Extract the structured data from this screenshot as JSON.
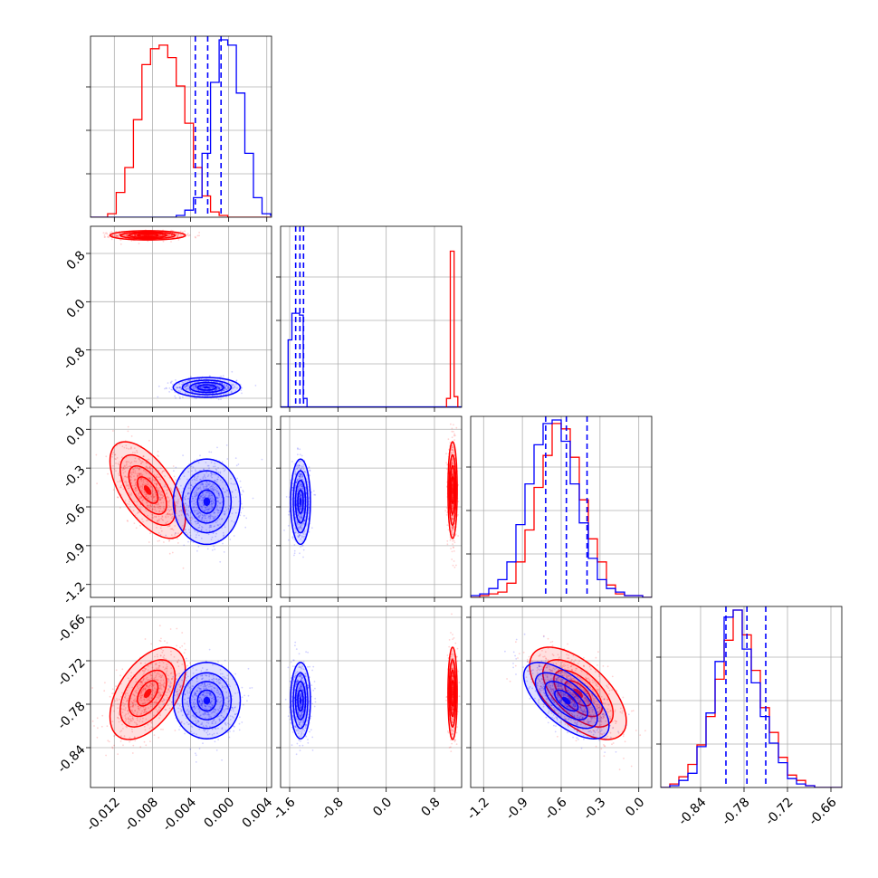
{
  "chart_data": {
    "type": "corner",
    "parameters": 4,
    "colors": {
      "series_a": "#ff0000",
      "series_b": "#0000ff",
      "grid": "#b0b0b0"
    },
    "grid": true,
    "axes": [
      {
        "range": [
          -0.0145,
          0.0045
        ],
        "ticks": [
          "-0.012",
          "-0.008",
          "-0.004",
          "0.000",
          "0.004"
        ],
        "tick_values": [
          -0.012,
          -0.008,
          -0.004,
          0.0,
          0.004
        ]
      },
      {
        "range": [
          -1.75,
          1.25
        ],
        "ticks": [
          "-1.6",
          "-0.8",
          "0.0",
          "0.8"
        ],
        "tick_values": [
          -1.6,
          -0.8,
          0.0,
          0.8
        ]
      },
      {
        "range": [
          -1.3,
          0.1
        ],
        "ticks": [
          "-1.2",
          "-0.9",
          "-0.6",
          "-0.3",
          "0.0"
        ],
        "tick_values": [
          -1.2,
          -0.9,
          -0.6,
          -0.3,
          0.0
        ]
      },
      {
        "range": [
          -0.895,
          -0.645
        ],
        "ticks": [
          "-0.84",
          "-0.78",
          "-0.72",
          "-0.66"
        ],
        "tick_values": [
          -0.84,
          -0.78,
          -0.72,
          -0.66
        ]
      }
    ],
    "series": [
      {
        "color": "#ff0000",
        "mean": [
          -0.0085,
          1.1,
          -0.47,
          -0.765
        ],
        "std": [
          0.0018,
          0.035,
          0.17,
          0.029
        ],
        "corr": {
          "0-2": -0.6,
          "0-3": 0.5,
          "2-3": -0.6
        }
      },
      {
        "color": "#0000ff",
        "mean": [
          -0.0023,
          -1.42,
          -0.56,
          -0.775
        ],
        "std": [
          0.0016,
          0.075,
          0.15,
          0.024
        ],
        "corr": {
          "0-2": 0.0,
          "0-3": 0.0,
          "2-3": -0.65
        }
      }
    ],
    "quantile_lines": [
      [
        -0.0035,
        -0.0022,
        -0.0008
      ],
      [
        -1.5,
        -1.43,
        -1.37
      ],
      [
        -0.72,
        -0.56,
        -0.4
      ],
      [
        -0.805,
        -0.776,
        -0.75
      ]
    ],
    "histograms": [
      {
        "bin_start": -0.0145,
        "bin_width": 0.0009,
        "red": [
          0,
          0,
          0.02,
          0.14,
          0.28,
          0.55,
          0.86,
          0.95,
          0.97,
          0.9,
          0.74,
          0.53,
          0.28,
          0.12,
          0.03,
          0.01,
          0,
          0,
          0,
          0,
          0,
          0
        ],
        "blue": [
          0,
          0,
          0,
          0,
          0,
          0,
          0,
          0,
          0,
          0,
          0.01,
          0.04,
          0.11,
          0.36,
          0.76,
          1.0,
          0.97,
          0.7,
          0.36,
          0.11,
          0.02,
          0.01
        ]
      },
      {
        "bin_start": -1.75,
        "bin_width": 0.0625,
        "bar_scale": 1.0,
        "blue_bins": [
          [
            -1.625,
            0.38
          ],
          [
            -1.5625,
            0.53
          ],
          [
            -1.5,
            0.53
          ],
          [
            -1.4375,
            0.52
          ],
          [
            -1.375,
            0.05
          ]
        ],
        "red_bins": [
          [
            1.0,
            0.05
          ],
          [
            1.0625,
            0.88
          ],
          [
            1.125,
            0.06
          ]
        ]
      },
      {
        "bin_start": -1.3,
        "bin_width": 0.07,
        "red": [
          0,
          0.01,
          0.02,
          0.03,
          0.08,
          0.2,
          0.38,
          0.62,
          0.8,
          0.98,
          0.95,
          0.79,
          0.55,
          0.33,
          0.2,
          0.07,
          0.02,
          0.01,
          0.01,
          0
        ],
        "blue": [
          0.01,
          0.02,
          0.05,
          0.1,
          0.2,
          0.41,
          0.64,
          0.86,
          0.98,
          1.0,
          0.88,
          0.64,
          0.42,
          0.22,
          0.1,
          0.05,
          0.03,
          0.01,
          0.01,
          0
        ]
      },
      {
        "bin_start": -0.895,
        "bin_width": 0.0125,
        "red": [
          0,
          0.02,
          0.06,
          0.13,
          0.24,
          0.4,
          0.61,
          0.83,
          1.0,
          0.86,
          0.66,
          0.45,
          0.31,
          0.17,
          0.07,
          0.04,
          0.01,
          0,
          0,
          0
        ],
        "blue": [
          0,
          0.01,
          0.04,
          0.08,
          0.23,
          0.42,
          0.71,
          0.96,
          1.0,
          0.78,
          0.59,
          0.4,
          0.25,
          0.14,
          0.05,
          0.02,
          0.01,
          0,
          0,
          0
        ]
      }
    ]
  }
}
